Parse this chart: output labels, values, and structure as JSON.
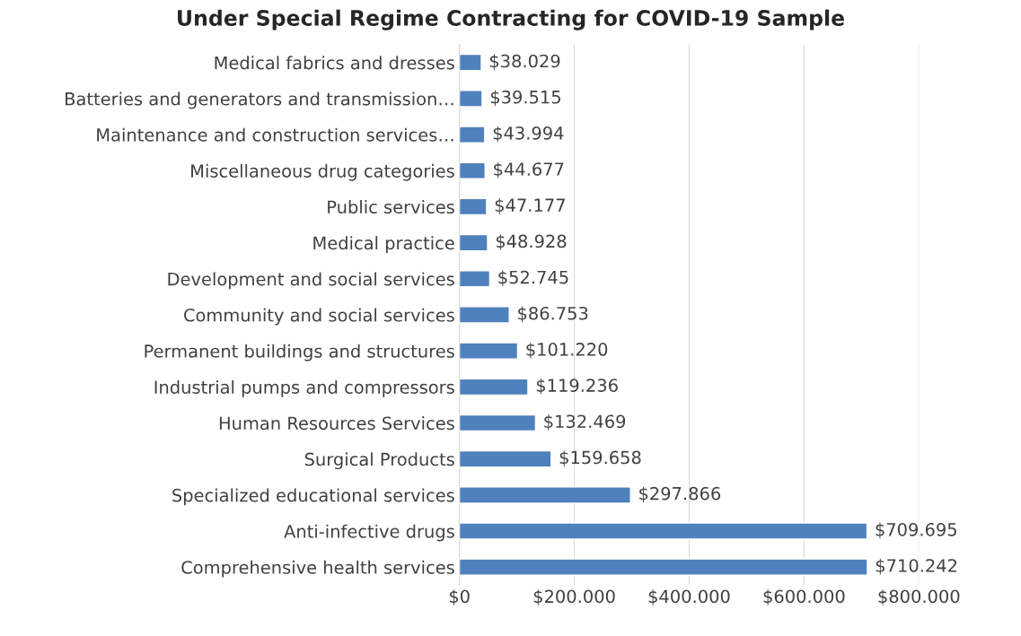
{
  "chart_data": {
    "type": "bar",
    "orientation": "horizontal",
    "title": "Under Special Regime Contracting for COVID-19 Sample",
    "categories": [
      "Medical fabrics and dresses",
      "Batteries and generators and transmission…",
      "Maintenance and construction services…",
      "Miscellaneous drug categories",
      "Public services",
      "Medical practice",
      "Development and social services",
      "Community and social services",
      "Permanent buildings and structures",
      "Industrial pumps and compressors",
      "Human Resources Services",
      "Surgical Products",
      "Specialized educational services",
      "Anti-infective drugs",
      "Comprehensive health services"
    ],
    "values": [
      38029,
      39515,
      43994,
      44677,
      47177,
      48928,
      52745,
      86753,
      101220,
      119236,
      132469,
      159658,
      297866,
      709695,
      710242
    ],
    "value_labels": [
      "$38.029",
      "$39.515",
      "$43.994",
      "$44.677",
      "$47.177",
      "$48.928",
      "$52.745",
      "$86.753",
      "$101.220",
      "$119.236",
      "$132.469",
      "$159.658",
      "$297.866",
      "$709.695",
      "$710.242"
    ],
    "color": "#4f81bd",
    "xlim": [
      0,
      800000
    ],
    "xticks": [
      {
        "value": 0,
        "label": "$0"
      },
      {
        "value": 200000,
        "label": "$200.000"
      },
      {
        "value": 400000,
        "label": "$400.000"
      },
      {
        "value": 600000,
        "label": "$600.000"
      },
      {
        "value": 800000,
        "label": "$800.000"
      }
    ],
    "grid": "x",
    "legend": false
  }
}
